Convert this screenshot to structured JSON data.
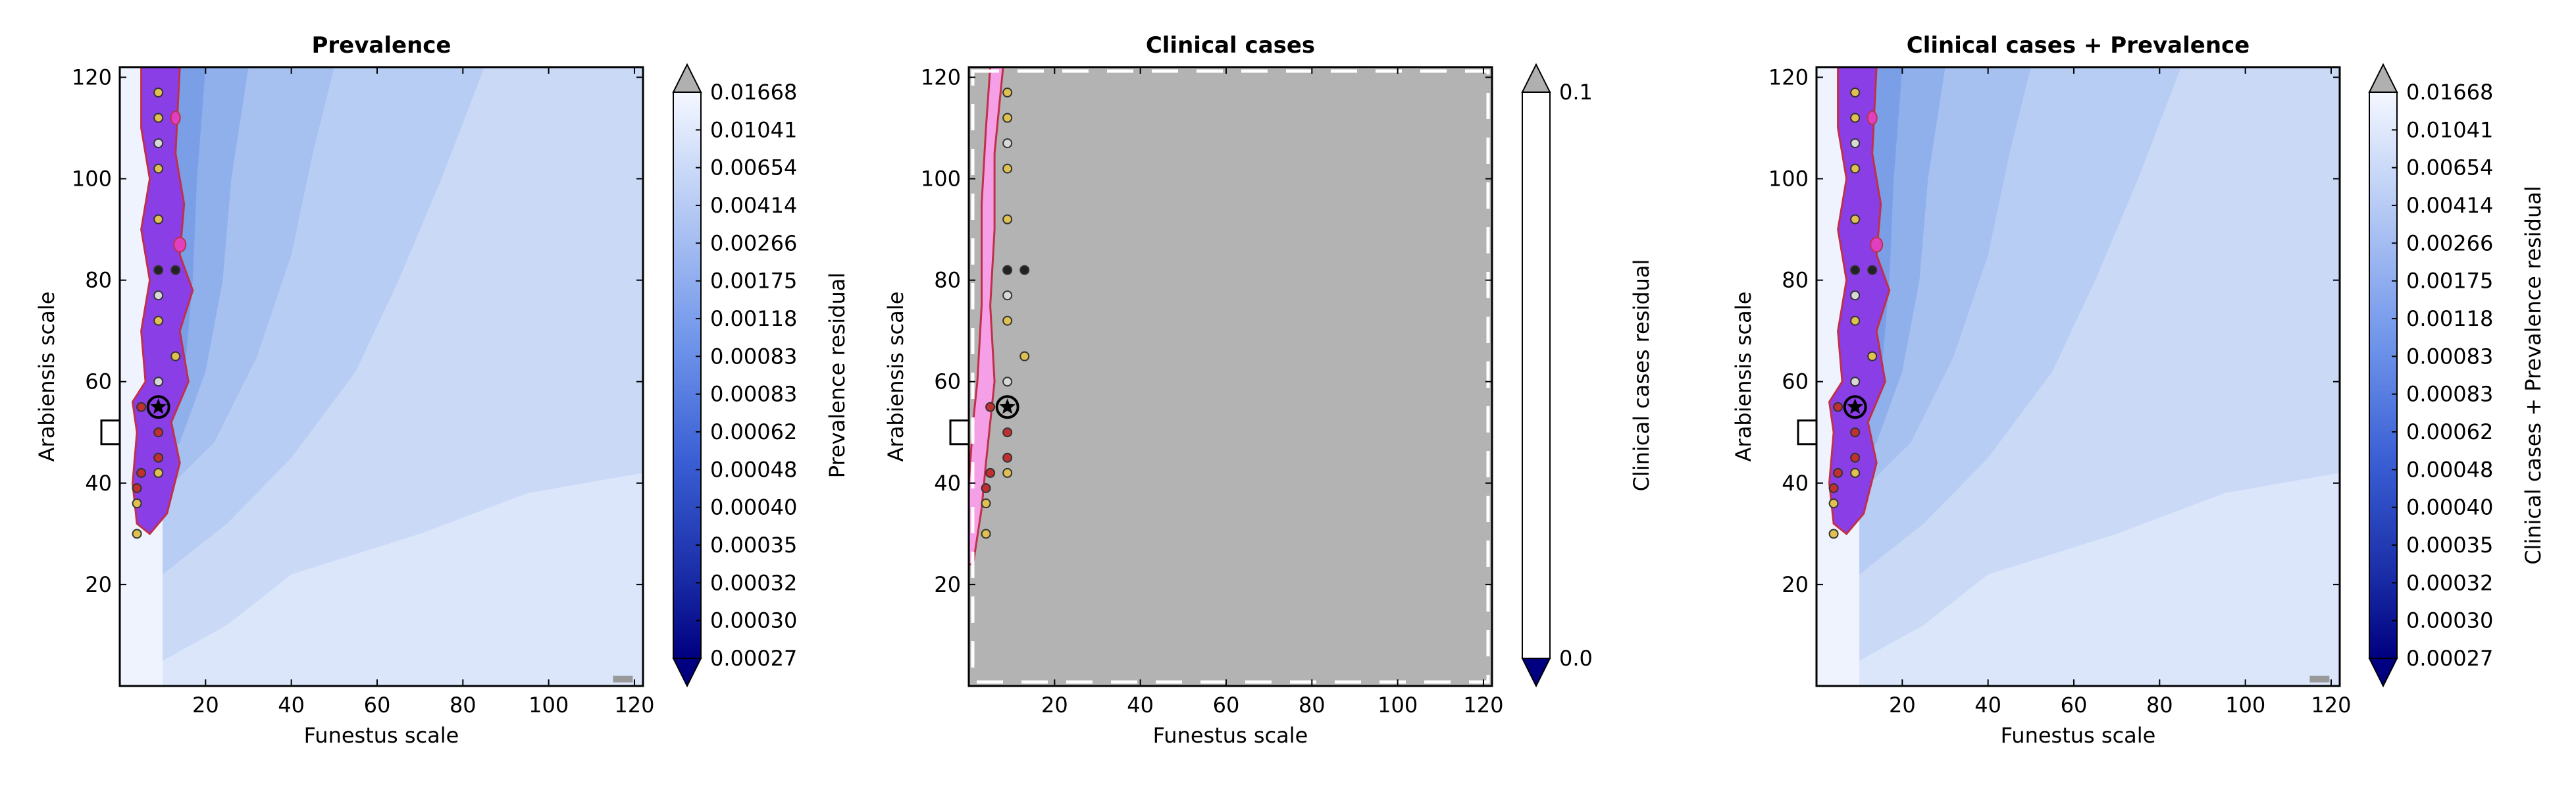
{
  "chart_data": [
    {
      "type": "heatmap",
      "title": "Prevalence",
      "xlabel": "Funestus scale",
      "ylabel": "Arabiensis scale",
      "xlim": [
        0,
        122
      ],
      "ylim": [
        0,
        122
      ],
      "xticks": [
        "20",
        "40",
        "60",
        "80",
        "100",
        "120"
      ],
      "yticks": [
        "20",
        "40",
        "60",
        "80",
        "100",
        "120"
      ],
      "colorbar_label": "Prevalence residual",
      "colorbar_ticks": [
        "0.01668",
        "0.01041",
        "0.00654",
        "0.00414",
        "0.00266",
        "0.00175",
        "0.00118",
        "0.00083",
        "0.00083",
        "0.00062",
        "0.00048",
        "0.00040",
        "0.00035",
        "0.00032",
        "0.00030",
        "0.00027"
      ],
      "colors": {
        "low": "#000080",
        "high": "#f2f6ff",
        "region": "#8a3fe6",
        "region_edge": "#c0304a"
      },
      "markers": [
        {
          "x": 9,
          "y": 117,
          "c": "#e0c050"
        },
        {
          "x": 9,
          "y": 112,
          "c": "#e0c050"
        },
        {
          "x": 9,
          "y": 107,
          "c": "#d8d8d8"
        },
        {
          "x": 9,
          "y": 102,
          "c": "#e0c050"
        },
        {
          "x": 9,
          "y": 92,
          "c": "#e0c050"
        },
        {
          "x": 9,
          "y": 82,
          "c": "#222222"
        },
        {
          "x": 13,
          "y": 82,
          "c": "#222222"
        },
        {
          "x": 9,
          "y": 77,
          "c": "#d8d8d8"
        },
        {
          "x": 9,
          "y": 72,
          "c": "#e0c050"
        },
        {
          "x": 13,
          "y": 65,
          "c": "#e0c050"
        },
        {
          "x": 9,
          "y": 60,
          "c": "#d8d8d8"
        },
        {
          "x": 5,
          "y": 55,
          "c": "#c03030"
        },
        {
          "x": 9,
          "y": 50,
          "c": "#c03030"
        },
        {
          "x": 9,
          "y": 45,
          "c": "#c03030"
        },
        {
          "x": 5,
          "y": 42,
          "c": "#c03030"
        },
        {
          "x": 9,
          "y": 42,
          "c": "#e0c050"
        },
        {
          "x": 4,
          "y": 39,
          "c": "#c03030"
        },
        {
          "x": 4,
          "y": 36,
          "c": "#e0c050"
        },
        {
          "x": 4,
          "y": 30,
          "c": "#e0c050"
        }
      ],
      "highlight": {
        "x": 9,
        "y": 55
      },
      "square": {
        "x": 2,
        "y": 50
      }
    },
    {
      "type": "heatmap",
      "title": "Clinical cases",
      "xlabel": "Funestus scale",
      "ylabel": "Arabiensis scale",
      "xlim": [
        0,
        122
      ],
      "ylim": [
        0,
        122
      ],
      "xticks": [
        "20",
        "40",
        "60",
        "80",
        "100",
        "120"
      ],
      "yticks": [
        "20",
        "40",
        "60",
        "80",
        "100",
        "120"
      ],
      "colorbar_label": "Clinical cases residual",
      "colorbar_ticks": [
        "0.1",
        "0.0"
      ],
      "colors": {
        "background": "#b3b3b3",
        "region": "#f5a0e6",
        "region_edge": "#c0304a"
      },
      "markers": [
        {
          "x": 9,
          "y": 117,
          "c": "#e0c050"
        },
        {
          "x": 9,
          "y": 112,
          "c": "#e0c050"
        },
        {
          "x": 9,
          "y": 107,
          "c": "#d8d8d8"
        },
        {
          "x": 9,
          "y": 102,
          "c": "#e0c050"
        },
        {
          "x": 9,
          "y": 92,
          "c": "#e0c050"
        },
        {
          "x": 9,
          "y": 82,
          "c": "#222222"
        },
        {
          "x": 13,
          "y": 82,
          "c": "#222222"
        },
        {
          "x": 9,
          "y": 77,
          "c": "#d8d8d8"
        },
        {
          "x": 9,
          "y": 72,
          "c": "#e0c050"
        },
        {
          "x": 13,
          "y": 65,
          "c": "#e0c050"
        },
        {
          "x": 9,
          "y": 60,
          "c": "#d8d8d8"
        },
        {
          "x": 5,
          "y": 55,
          "c": "#c03030"
        },
        {
          "x": 9,
          "y": 50,
          "c": "#c03030"
        },
        {
          "x": 9,
          "y": 45,
          "c": "#c03030"
        },
        {
          "x": 5,
          "y": 42,
          "c": "#c03030"
        },
        {
          "x": 9,
          "y": 42,
          "c": "#e0c050"
        },
        {
          "x": 4,
          "y": 39,
          "c": "#c03030"
        },
        {
          "x": 4,
          "y": 36,
          "c": "#e0c050"
        },
        {
          "x": 4,
          "y": 30,
          "c": "#e0c050"
        }
      ],
      "highlight": {
        "x": 9,
        "y": 55
      },
      "square": {
        "x": 2,
        "y": 50
      }
    },
    {
      "type": "heatmap",
      "title": "Clinical cases + Prevalence",
      "xlabel": "Funestus scale",
      "ylabel": "Arabiensis scale",
      "xlim": [
        0,
        122
      ],
      "ylim": [
        0,
        122
      ],
      "xticks": [
        "20",
        "40",
        "60",
        "80",
        "100",
        "120"
      ],
      "yticks": [
        "20",
        "40",
        "60",
        "80",
        "100",
        "120"
      ],
      "colorbar_label": "Clinical cases + Prevalence residual",
      "colorbar_ticks": [
        "0.01668",
        "0.01041",
        "0.00654",
        "0.00414",
        "0.00266",
        "0.00175",
        "0.00118",
        "0.00083",
        "0.00083",
        "0.00062",
        "0.00048",
        "0.00040",
        "0.00035",
        "0.00032",
        "0.00030",
        "0.00027"
      ],
      "colors": {
        "low": "#000080",
        "high": "#f2f6ff",
        "region": "#8a3fe6",
        "region_edge": "#c0304a"
      },
      "markers": [
        {
          "x": 9,
          "y": 117,
          "c": "#e0c050"
        },
        {
          "x": 9,
          "y": 112,
          "c": "#e0c050"
        },
        {
          "x": 9,
          "y": 107,
          "c": "#d8d8d8"
        },
        {
          "x": 9,
          "y": 102,
          "c": "#e0c050"
        },
        {
          "x": 9,
          "y": 92,
          "c": "#e0c050"
        },
        {
          "x": 9,
          "y": 82,
          "c": "#222222"
        },
        {
          "x": 13,
          "y": 82,
          "c": "#222222"
        },
        {
          "x": 9,
          "y": 77,
          "c": "#d8d8d8"
        },
        {
          "x": 9,
          "y": 72,
          "c": "#e0c050"
        },
        {
          "x": 13,
          "y": 65,
          "c": "#e0c050"
        },
        {
          "x": 9,
          "y": 60,
          "c": "#d8d8d8"
        },
        {
          "x": 5,
          "y": 55,
          "c": "#c03030"
        },
        {
          "x": 9,
          "y": 50,
          "c": "#c03030"
        },
        {
          "x": 9,
          "y": 45,
          "c": "#c03030"
        },
        {
          "x": 5,
          "y": 42,
          "c": "#c03030"
        },
        {
          "x": 9,
          "y": 42,
          "c": "#e0c050"
        },
        {
          "x": 4,
          "y": 39,
          "c": "#c03030"
        },
        {
          "x": 4,
          "y": 36,
          "c": "#e0c050"
        },
        {
          "x": 4,
          "y": 30,
          "c": "#e0c050"
        }
      ],
      "highlight": {
        "x": 9,
        "y": 55
      },
      "square": {
        "x": 2,
        "y": 50
      }
    }
  ]
}
